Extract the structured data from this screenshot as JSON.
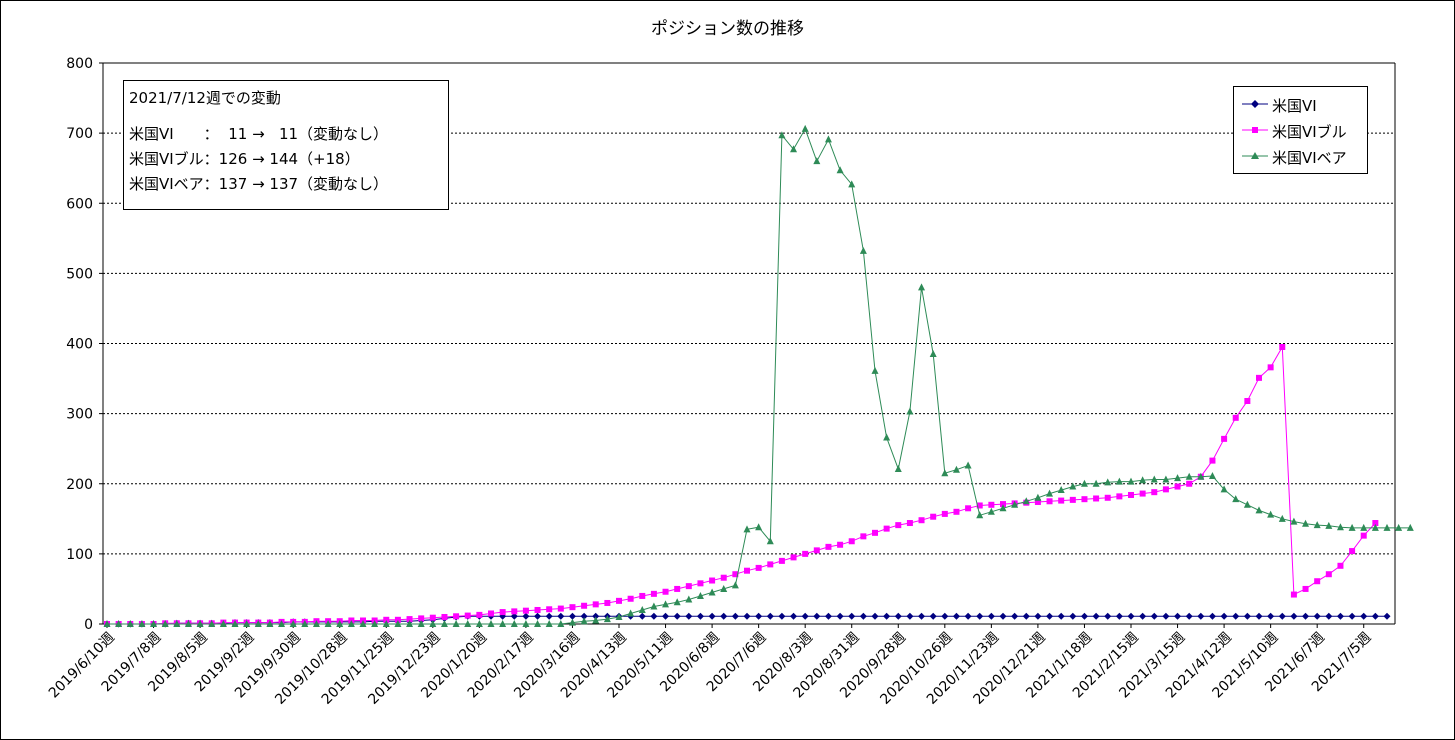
{
  "chart_data": {
    "type": "line",
    "title": "ポジション数の推移",
    "ylim": [
      0,
      800
    ],
    "yticks": [
      0,
      100,
      200,
      300,
      400,
      500,
      600,
      700,
      800
    ],
    "grid": "horizontal dotted",
    "legend_position": "top-right",
    "xtick_labels": [
      "2019/6/10週",
      "2019/7/8週",
      "2019/8/5週",
      "2019/9/2週",
      "2019/9/30週",
      "2019/10/28週",
      "2019/11/25週",
      "2019/12/23週",
      "2020/1/20週",
      "2020/2/17週",
      "2020/3/16週",
      "2020/4/13週",
      "2020/5/11週",
      "2020/6/8週",
      "2020/7/6週",
      "2020/8/3週",
      "2020/8/31週",
      "2020/9/28週",
      "2020/10/26週",
      "2020/11/23週",
      "2020/12/21週",
      "2021/1/18週",
      "2021/2/15週",
      "2021/3/15週",
      "2021/4/12週",
      "2021/5/10週",
      "2021/6/7週",
      "2021/7/5週"
    ],
    "series": [
      {
        "name": "米国VI",
        "color": "#000080",
        "marker": "diamond",
        "values": [
          0,
          0,
          0,
          0,
          0,
          0,
          1,
          1,
          1,
          1,
          1,
          2,
          2,
          2,
          2,
          2,
          3,
          3,
          3,
          3,
          3,
          3,
          3,
          4,
          4,
          4,
          4,
          5,
          6,
          8,
          10,
          11,
          11,
          11,
          11,
          11,
          11,
          11,
          11,
          11,
          11,
          11,
          11,
          11,
          11,
          11,
          11,
          11,
          11,
          11,
          11,
          11,
          11,
          11,
          11,
          11,
          11,
          11,
          11,
          11,
          11,
          11,
          11,
          11,
          11,
          11,
          11,
          11,
          11,
          11,
          11,
          11,
          11,
          11,
          11,
          11,
          11,
          11,
          11,
          11,
          11,
          11,
          11,
          11,
          11,
          11,
          11,
          11,
          11,
          11,
          11,
          11,
          11,
          11,
          11,
          11,
          11,
          11,
          11,
          11,
          11,
          11,
          11,
          11,
          11,
          11,
          11,
          11,
          11,
          11,
          11
        ]
      },
      {
        "name": "米国VIブル",
        "color": "#ff00ff",
        "marker": "square",
        "values": [
          0,
          0,
          0,
          0,
          0,
          1,
          1,
          1,
          1,
          1,
          2,
          2,
          2,
          2,
          2,
          3,
          3,
          3,
          4,
          4,
          4,
          5,
          5,
          5,
          6,
          6,
          7,
          8,
          9,
          10,
          11,
          12,
          13,
          15,
          17,
          18,
          19,
          20,
          21,
          22,
          24,
          26,
          28,
          30,
          33,
          36,
          40,
          43,
          46,
          50,
          54,
          58,
          62,
          66,
          71,
          76,
          80,
          85,
          90,
          95,
          100,
          105,
          110,
          113,
          118,
          125,
          130,
          136,
          141,
          144,
          148,
          153,
          157,
          160,
          165,
          169,
          170,
          171,
          172,
          173,
          174,
          175,
          176,
          177,
          178,
          179,
          180,
          182,
          184,
          186,
          188,
          192,
          196,
          200,
          210,
          233,
          264,
          294,
          318,
          351,
          366,
          395,
          42,
          50,
          61,
          71,
          83,
          104,
          126,
          144
        ]
      },
      {
        "name": "米国VIベア",
        "color": "#2e8b57",
        "marker": "triangle",
        "values": [
          0,
          0,
          0,
          0,
          0,
          0,
          0,
          0,
          0,
          0,
          0,
          0,
          0,
          0,
          0,
          0,
          0,
          0,
          0,
          0,
          0,
          0,
          0,
          0,
          0,
          0,
          0,
          0,
          0,
          0,
          0,
          0,
          0,
          0,
          0,
          0,
          0,
          0,
          0,
          0,
          2,
          4,
          5,
          7,
          10,
          15,
          20,
          25,
          28,
          31,
          35,
          40,
          45,
          50,
          55,
          135,
          138,
          118,
          697,
          677,
          706,
          660,
          691,
          647,
          627,
          532,
          361,
          266,
          221,
          303,
          480,
          385,
          215,
          220,
          226,
          155,
          160,
          165,
          170,
          175,
          180,
          186,
          191,
          196,
          200,
          200,
          202,
          203,
          203,
          205,
          206,
          206,
          208,
          210,
          210,
          211,
          192,
          178,
          170,
          162,
          156,
          150,
          146,
          143,
          141,
          140,
          138,
          137,
          137,
          137,
          137,
          137,
          137
        ]
      }
    ]
  },
  "annotation": {
    "heading": "2021/7/12週での変動",
    "lines": [
      "米国VI　　：  11 →   11（変動なし）",
      "米国VIブル：126 → 144（+18）",
      "米国VIベア：137 → 137（変動なし）"
    ]
  }
}
